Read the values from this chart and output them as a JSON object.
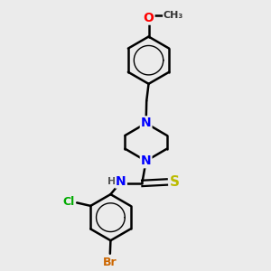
{
  "bg_color": "#ebebeb",
  "bond_color": "#000000",
  "bond_width": 1.8,
  "atom_colors": {
    "N": "#0000ff",
    "O": "#ff0000",
    "S": "#bbbb00",
    "Cl": "#00aa00",
    "Br": "#cc6600",
    "C": "#000000",
    "H": "#555555"
  },
  "font_size": 9,
  "fig_size": [
    3.0,
    3.0
  ],
  "dpi": 100
}
